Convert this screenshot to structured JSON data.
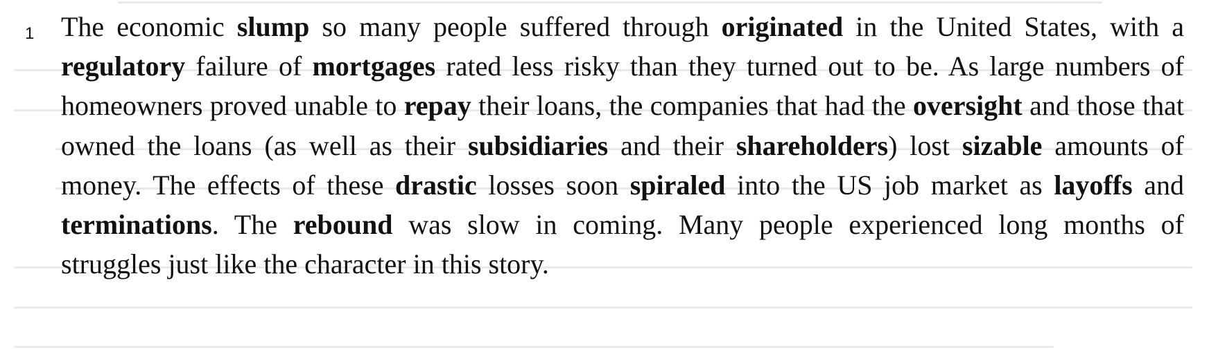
{
  "paragraph": {
    "line_number": "1",
    "segments": [
      {
        "text": "The economic ",
        "bold": false
      },
      {
        "text": "slump",
        "bold": true
      },
      {
        "text": " so many people suffered through ",
        "bold": false
      },
      {
        "text": "originated",
        "bold": true
      },
      {
        "text": " in the United States, with a ",
        "bold": false
      },
      {
        "text": "regulatory",
        "bold": true
      },
      {
        "text": " failure of ",
        "bold": false
      },
      {
        "text": "mortgages",
        "bold": true
      },
      {
        "text": " rated less risky than they turned out to be. As large numbers of homeowners proved unable to ",
        "bold": false
      },
      {
        "text": "repay",
        "bold": true
      },
      {
        "text": " their loans, the companies that had the ",
        "bold": false
      },
      {
        "text": "oversight",
        "bold": true
      },
      {
        "text": " and those that owned the loans (as well as their ",
        "bold": false
      },
      {
        "text": "subsidiaries",
        "bold": true
      },
      {
        "text": " and their ",
        "bold": false
      },
      {
        "text": "shareholders",
        "bold": true
      },
      {
        "text": ") lost ",
        "bold": false
      },
      {
        "text": "sizable",
        "bold": true
      },
      {
        "text": " amounts of money. The effects of these ",
        "bold": false
      },
      {
        "text": "drastic",
        "bold": true
      },
      {
        "text": " losses soon ",
        "bold": false
      },
      {
        "text": "spiraled",
        "bold": true
      },
      {
        "text": " into the US job market as ",
        "bold": false
      },
      {
        "text": "layoffs",
        "bold": true
      },
      {
        "text": " and ",
        "bold": false
      },
      {
        "text": "terminations",
        "bold": true
      },
      {
        "text": ". The ",
        "bold": false
      },
      {
        "text": "rebound",
        "bold": true
      },
      {
        "text": " was slow in coming. Many people experienced long months of struggles just like the character in this story.",
        "bold": false
      }
    ]
  }
}
